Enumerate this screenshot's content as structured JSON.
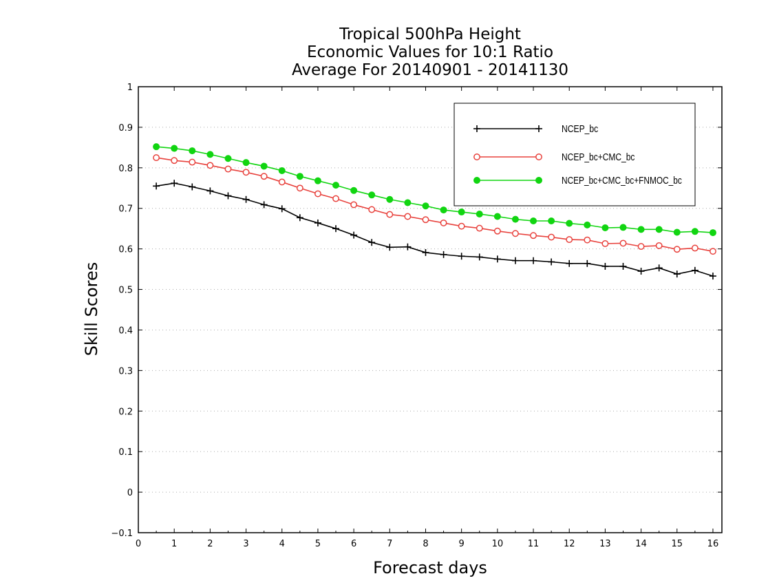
{
  "chart_data": {
    "type": "line",
    "title": [
      "Tropical 500hPa Height",
      "Economic Values for 10:1 Ratio",
      "Average For 20140901 - 20141130"
    ],
    "xlabel": "Forecast days",
    "ylabel": "Skill Scores",
    "xlim": [
      0,
      16.25
    ],
    "ylim": [
      -0.1,
      1
    ],
    "xticks": [
      "0",
      "1",
      "2",
      "3",
      "4",
      "5",
      "6",
      "7",
      "8",
      "9",
      "10",
      "11",
      "12",
      "13",
      "14",
      "15",
      "16"
    ],
    "yticks": [
      "−0.1",
      "0",
      "0.1",
      "0.2",
      "0.3",
      "0.4",
      "0.5",
      "0.6",
      "0.7",
      "0.8",
      "0.9",
      "1"
    ],
    "grid": true,
    "legend_position": "top-right",
    "x": [
      0.5,
      1,
      1.5,
      2,
      2.5,
      3,
      3.5,
      4,
      4.5,
      5,
      5.5,
      6,
      6.5,
      7,
      7.5,
      8,
      8.5,
      9,
      9.5,
      10,
      10.5,
      11,
      11.5,
      12,
      12.5,
      13,
      13.5,
      14,
      14.5,
      15,
      15.5,
      16
    ],
    "series": [
      {
        "name": "NCEP_bc",
        "color": "#000000",
        "marker": "plus",
        "values": [
          0.755,
          0.762,
          0.753,
          0.743,
          0.731,
          0.722,
          0.709,
          0.699,
          0.677,
          0.664,
          0.65,
          0.634,
          0.616,
          0.604,
          0.605,
          0.591,
          0.586,
          0.582,
          0.58,
          0.575,
          0.571,
          0.571,
          0.568,
          0.564,
          0.564,
          0.557,
          0.557,
          0.545,
          0.553,
          0.538,
          0.547,
          0.533
        ]
      },
      {
        "name": "NCEP_bc+CMC_bc",
        "color": "#e8413c",
        "marker": "open-circle",
        "values": [
          0.825,
          0.818,
          0.814,
          0.806,
          0.797,
          0.789,
          0.779,
          0.765,
          0.75,
          0.736,
          0.724,
          0.709,
          0.697,
          0.685,
          0.68,
          0.672,
          0.664,
          0.656,
          0.651,
          0.644,
          0.638,
          0.633,
          0.629,
          0.623,
          0.622,
          0.613,
          0.614,
          0.606,
          0.608,
          0.599,
          0.602,
          0.594
        ]
      },
      {
        "name": "NCEP_bc+CMC_bc+FNMOC_bc",
        "color": "#11d511",
        "marker": "filled-circle",
        "values": [
          0.852,
          0.848,
          0.842,
          0.833,
          0.823,
          0.813,
          0.804,
          0.793,
          0.779,
          0.768,
          0.757,
          0.744,
          0.733,
          0.722,
          0.714,
          0.706,
          0.696,
          0.691,
          0.686,
          0.68,
          0.673,
          0.669,
          0.669,
          0.663,
          0.659,
          0.652,
          0.653,
          0.648,
          0.648,
          0.641,
          0.643,
          0.64
        ]
      }
    ]
  }
}
